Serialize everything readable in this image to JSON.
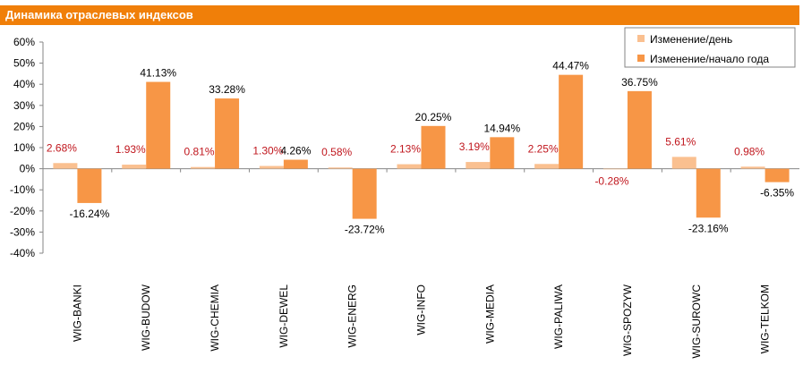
{
  "header": {
    "title": "Динамика отраслевых индексов"
  },
  "chart_data": {
    "type": "bar",
    "categories": [
      "WIG-BANKI",
      "WIG-BUDOW",
      "WIG-CHEMIA",
      "WIG-DEWEL",
      "WIG-ENERG",
      "WIG-INFO",
      "WIG-MEDIA",
      "WIG-PALIWA",
      "WIG-SPOZYW",
      "WIG-SUROWC",
      "WIG-TELKOM"
    ],
    "series": [
      {
        "name": "Изменение/день",
        "color": "#fac090",
        "values": [
          2.68,
          1.93,
          0.81,
          1.3,
          0.58,
          2.13,
          3.19,
          2.25,
          -0.28,
          5.61,
          0.98
        ],
        "labels": [
          "2.68%",
          "1.93%",
          "0.81%",
          "1.30%",
          "0.58%",
          "2.13%",
          "3.19%",
          "2.25%",
          "-0.28%",
          "5.61%",
          "0.98%"
        ],
        "label_color": "#c0161d"
      },
      {
        "name": "Изменение/начало года",
        "color": "#f79646",
        "values": [
          -16.24,
          41.13,
          33.28,
          4.26,
          -23.72,
          20.25,
          14.94,
          44.47,
          36.75,
          -23.16,
          -6.35
        ],
        "labels": [
          "-16.24%",
          "41.13%",
          "33.28%",
          "4.26%",
          "-23.72%",
          "20.25%",
          "14.94%",
          "44.47%",
          "36.75%",
          "-23.16%",
          "-6.35%"
        ],
        "label_color": "#000000"
      }
    ],
    "ylim": [
      -40,
      60
    ],
    "yticks": [
      -40,
      -30,
      -20,
      -10,
      0,
      10,
      20,
      30,
      40,
      50,
      60
    ],
    "ytick_labels": [
      "-40%",
      "-30%",
      "-20%",
      "-10%",
      "0%",
      "10%",
      "20%",
      "30%",
      "40%",
      "50%",
      "60%"
    ],
    "grid": false,
    "legend_position": "top-right",
    "title": "Динамика отраслевых индексов",
    "xlabel": "",
    "ylabel": ""
  }
}
